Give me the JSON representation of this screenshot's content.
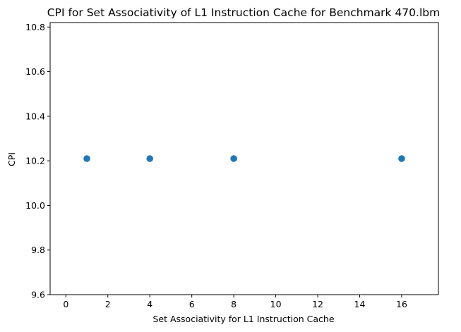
{
  "chart_data": {
    "type": "scatter",
    "title": "CPI for Set Associativity of L1 Instruction Cache for Benchmark 470.lbm",
    "xlabel": "Set Associativity for L1 Instruction Cache",
    "ylabel": "CPI",
    "xlim": [
      -0.75,
      17.75
    ],
    "ylim": [
      9.6,
      10.82
    ],
    "xticks": [
      0,
      2,
      4,
      6,
      8,
      10,
      12,
      14,
      16
    ],
    "xtick_labels": [
      "0",
      "2",
      "4",
      "6",
      "8",
      "10",
      "12",
      "14",
      "16"
    ],
    "yticks": [
      9.6,
      9.8,
      10.0,
      10.2,
      10.4,
      10.6,
      10.8
    ],
    "ytick_labels": [
      "9.6",
      "9.8",
      "10.0",
      "10.2",
      "10.4",
      "10.6",
      "10.8"
    ],
    "grid": false,
    "series": [
      {
        "x": [
          1,
          4,
          8,
          16
        ],
        "y": [
          10.21,
          10.21,
          10.21,
          10.21
        ],
        "color": "#1f77b4"
      }
    ]
  }
}
